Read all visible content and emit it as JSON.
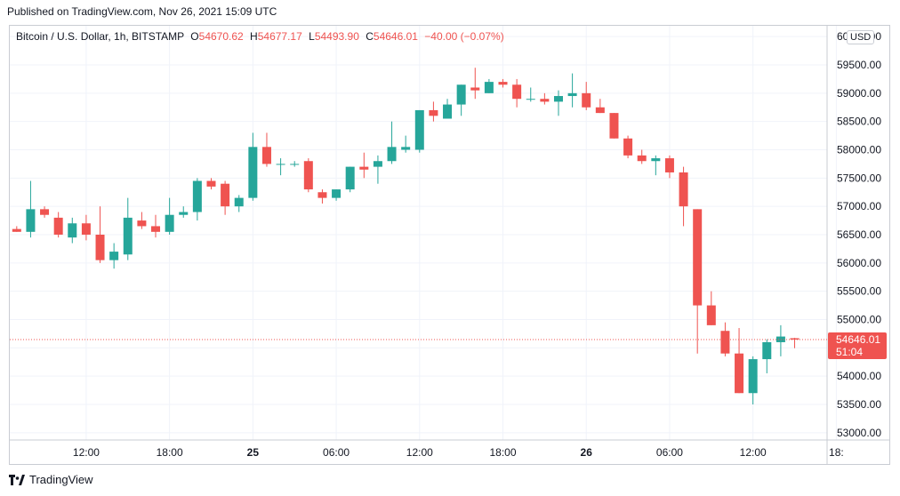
{
  "header": {
    "published": "Published on TradingView.com, Nov 26, 2021 15:09 UTC"
  },
  "legend": {
    "symbol": "Bitcoin / U.S. Dollar, 1h, BITSTAMP",
    "o_label": "O",
    "o_value": "54670.62",
    "h_label": "H",
    "h_value": "54677.17",
    "l_label": "L",
    "l_value": "54493.90",
    "c_label": "C",
    "c_value": "54646.01",
    "change": "−40.00 (−0.07%)"
  },
  "currency": "USD",
  "last_price": {
    "value": "54646.01",
    "countdown": "51:04"
  },
  "footer": {
    "brand": "TradingView"
  },
  "colors": {
    "up": "#26a69a",
    "down": "#ef5350",
    "grid": "#f0f3fa",
    "axis_text": "#131722"
  },
  "chart_data": {
    "type": "candlestick",
    "interval": "1h",
    "y_axis_ticks": [
      "53000.00",
      "53500.00",
      "54000.00",
      "54500.00",
      "55000.00",
      "55500.00",
      "56000.00",
      "56500.00",
      "57000.00",
      "57500.00",
      "58000.00",
      "58500.00",
      "59000.00",
      "59500.00",
      "60000.00"
    ],
    "x_axis_ticks": [
      "12:00",
      "18:00",
      "25",
      "06:00",
      "12:00",
      "18:00",
      "26",
      "06:00",
      "12:00",
      "18:"
    ],
    "ylim": [
      52950,
      60050
    ],
    "last_price": 54646.01,
    "candles": [
      {
        "o": 56600,
        "h": 56650,
        "l": 56550,
        "c": 56550
      },
      {
        "o": 56550,
        "h": 57450,
        "l": 56450,
        "c": 56950
      },
      {
        "o": 56950,
        "h": 57000,
        "l": 56800,
        "c": 56850
      },
      {
        "o": 56800,
        "h": 56900,
        "l": 56450,
        "c": 56500
      },
      {
        "o": 56450,
        "h": 56800,
        "l": 56350,
        "c": 56700
      },
      {
        "o": 56700,
        "h": 56850,
        "l": 56400,
        "c": 56500
      },
      {
        "o": 56500,
        "h": 57000,
        "l": 56000,
        "c": 56050
      },
      {
        "o": 56050,
        "h": 56350,
        "l": 55900,
        "c": 56200
      },
      {
        "o": 56150,
        "h": 57150,
        "l": 56050,
        "c": 56800
      },
      {
        "o": 56750,
        "h": 56900,
        "l": 56600,
        "c": 56650
      },
      {
        "o": 56650,
        "h": 56850,
        "l": 56450,
        "c": 56550
      },
      {
        "o": 56550,
        "h": 57150,
        "l": 56500,
        "c": 56850
      },
      {
        "o": 56850,
        "h": 57000,
        "l": 56800,
        "c": 56900
      },
      {
        "o": 56900,
        "h": 57500,
        "l": 56750,
        "c": 57450
      },
      {
        "o": 57450,
        "h": 57500,
        "l": 57300,
        "c": 57350
      },
      {
        "o": 57400,
        "h": 57450,
        "l": 56850,
        "c": 57000
      },
      {
        "o": 57000,
        "h": 57200,
        "l": 56900,
        "c": 57150
      },
      {
        "o": 57150,
        "h": 58300,
        "l": 57100,
        "c": 58050
      },
      {
        "o": 58050,
        "h": 58300,
        "l": 57700,
        "c": 57750
      },
      {
        "o": 57750,
        "h": 57850,
        "l": 57550,
        "c": 57750
      },
      {
        "o": 57750,
        "h": 57800,
        "l": 57700,
        "c": 57750
      },
      {
        "o": 57800,
        "h": 57850,
        "l": 57250,
        "c": 57300
      },
      {
        "o": 57250,
        "h": 57300,
        "l": 57050,
        "c": 57150
      },
      {
        "o": 57150,
        "h": 57300,
        "l": 57100,
        "c": 57300
      },
      {
        "o": 57300,
        "h": 57700,
        "l": 57250,
        "c": 57700
      },
      {
        "o": 57700,
        "h": 57950,
        "l": 57500,
        "c": 57650
      },
      {
        "o": 57700,
        "h": 57900,
        "l": 57400,
        "c": 57800
      },
      {
        "o": 57800,
        "h": 58500,
        "l": 57750,
        "c": 58050
      },
      {
        "o": 58000,
        "h": 58250,
        "l": 57950,
        "c": 58050
      },
      {
        "o": 58000,
        "h": 58700,
        "l": 57950,
        "c": 58700
      },
      {
        "o": 58700,
        "h": 58850,
        "l": 58500,
        "c": 58600
      },
      {
        "o": 58550,
        "h": 58900,
        "l": 58550,
        "c": 58800
      },
      {
        "o": 58800,
        "h": 59150,
        "l": 58600,
        "c": 59150
      },
      {
        "o": 59100,
        "h": 59450,
        "l": 58900,
        "c": 59050
      },
      {
        "o": 59000,
        "h": 59250,
        "l": 59000,
        "c": 59200
      },
      {
        "o": 59200,
        "h": 59250,
        "l": 59100,
        "c": 59150
      },
      {
        "o": 59150,
        "h": 59250,
        "l": 58750,
        "c": 58900
      },
      {
        "o": 58900,
        "h": 59100,
        "l": 58850,
        "c": 58900
      },
      {
        "o": 58900,
        "h": 59000,
        "l": 58800,
        "c": 58850
      },
      {
        "o": 58850,
        "h": 59050,
        "l": 58600,
        "c": 58950
      },
      {
        "o": 58950,
        "h": 59350,
        "l": 58750,
        "c": 59000
      },
      {
        "o": 59000,
        "h": 59200,
        "l": 58700,
        "c": 58750
      },
      {
        "o": 58750,
        "h": 58900,
        "l": 58650,
        "c": 58650
      },
      {
        "o": 58650,
        "h": 58650,
        "l": 58200,
        "c": 58200
      },
      {
        "o": 58200,
        "h": 58250,
        "l": 57850,
        "c": 57900
      },
      {
        "o": 57900,
        "h": 58000,
        "l": 57750,
        "c": 57800
      },
      {
        "o": 57800,
        "h": 57900,
        "l": 57550,
        "c": 57850
      },
      {
        "o": 57850,
        "h": 57900,
        "l": 57500,
        "c": 57600
      },
      {
        "o": 57600,
        "h": 57700,
        "l": 56650,
        "c": 57000
      },
      {
        "o": 56950,
        "h": 56950,
        "l": 54400,
        "c": 55250
      },
      {
        "o": 55250,
        "h": 55500,
        "l": 54900,
        "c": 54900
      },
      {
        "o": 54800,
        "h": 54950,
        "l": 54350,
        "c": 54400
      },
      {
        "o": 54400,
        "h": 54850,
        "l": 53700,
        "c": 53700
      },
      {
        "o": 53700,
        "h": 54350,
        "l": 53500,
        "c": 54300
      },
      {
        "o": 54300,
        "h": 54650,
        "l": 54050,
        "c": 54600
      },
      {
        "o": 54600,
        "h": 54900,
        "l": 54350,
        "c": 54700
      },
      {
        "o": 54670,
        "h": 54677,
        "l": 54494,
        "c": 54646
      }
    ]
  }
}
